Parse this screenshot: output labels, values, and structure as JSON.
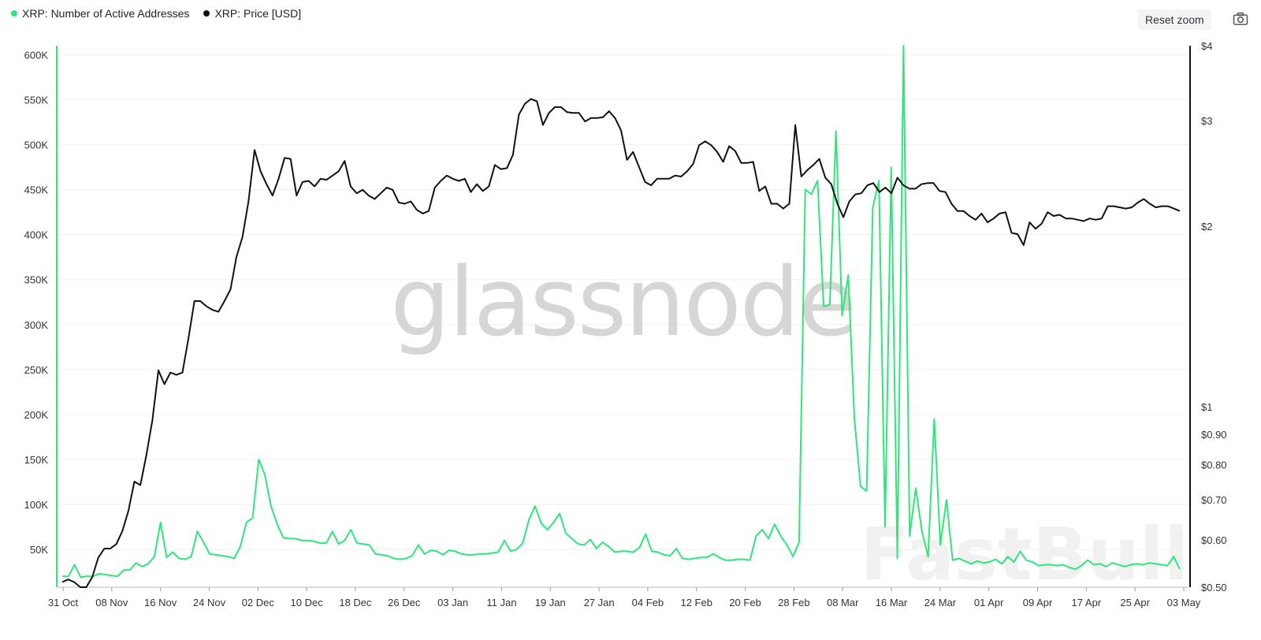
{
  "legend": [
    {
      "label": "XRP: Number of Active Addresses",
      "color": "#2ee67a"
    },
    {
      "label": "XRP: Price [USD]",
      "color": "#111111"
    }
  ],
  "toolbar": {
    "reset_zoom": "Reset zoom",
    "camera_icon": "camera-icon"
  },
  "watermarks": {
    "main": "glassnode",
    "secondary": "FastBull"
  },
  "chart_data": {
    "type": "line",
    "x_tick_labels": [
      "31 Oct",
      "08 Nov",
      "16 Nov",
      "24 Nov",
      "02 Dec",
      "10 Dec",
      "18 Dec",
      "26 Dec",
      "03 Jan",
      "11 Jan",
      "19 Jan",
      "27 Jan",
      "04 Feb",
      "12 Feb",
      "20 Feb",
      "28 Feb",
      "08 Mar",
      "16 Mar",
      "24 Mar",
      "01 Apr",
      "09 Apr",
      "17 Apr",
      "25 Apr",
      "03 May"
    ],
    "y_left": {
      "ticks": [
        50000,
        100000,
        150000,
        200000,
        250000,
        300000,
        350000,
        400000,
        450000,
        500000,
        550000,
        600000
      ],
      "tick_labels": [
        "50K",
        "100K",
        "150K",
        "200K",
        "250K",
        "300K",
        "350K",
        "400K",
        "450K",
        "500K",
        "550K",
        "600K"
      ],
      "range": [
        8000,
        610000
      ]
    },
    "y_right": {
      "scale": "log",
      "ticks": [
        0.5,
        0.6,
        0.7,
        0.8,
        0.9,
        1,
        2,
        3,
        4
      ],
      "tick_labels": [
        "$0.50",
        "$0.60",
        "$0.70",
        "$0.80",
        "$0.90",
        "$1",
        "$2",
        "$3",
        "$4"
      ],
      "range": [
        0.5,
        4
      ]
    },
    "series": [
      {
        "name": "XRP: Number of Active Addresses",
        "color": "#2ee67a",
        "axis": "left",
        "values": [
          20000,
          20000,
          33000,
          19000,
          20000,
          20000,
          23000,
          22000,
          21000,
          20000,
          27000,
          27000,
          35000,
          31000,
          34000,
          42000,
          80000,
          41000,
          47000,
          40000,
          39000,
          42000,
          70000,
          58000,
          45000,
          44000,
          43000,
          42000,
          40000,
          53000,
          80000,
          85000,
          150000,
          133000,
          98000,
          78000,
          63000,
          62000,
          62000,
          60000,
          60000,
          59000,
          57000,
          57000,
          70000,
          56000,
          60000,
          72000,
          57000,
          56000,
          55000,
          45000,
          44000,
          43000,
          40000,
          39000,
          40000,
          43000,
          55000,
          45000,
          49000,
          48000,
          44000,
          49000,
          48000,
          45000,
          44000,
          44000,
          45000,
          45000,
          46000,
          47000,
          60000,
          48000,
          50000,
          57000,
          83000,
          98000,
          79000,
          72000,
          80000,
          90000,
          68000,
          62000,
          56000,
          55000,
          61000,
          51000,
          58000,
          53000,
          47000,
          48000,
          48000,
          47000,
          52000,
          67000,
          48000,
          47000,
          44000,
          43000,
          51000,
          40000,
          39000,
          40000,
          41000,
          41000,
          45000,
          41000,
          38000,
          38000,
          39000,
          39000,
          38000,
          65000,
          72000,
          62000,
          78000,
          65000,
          55000,
          42000,
          58000,
          450000,
          445000,
          460000,
          320000,
          322000,
          515000,
          310000,
          355000,
          195000,
          120000,
          115000,
          430000,
          460000,
          75000,
          475000,
          40000,
          610000,
          65000,
          118000,
          70000,
          42000,
          195000,
          55000,
          105000,
          38000,
          40000,
          37000,
          34000,
          37000,
          35000,
          36000,
          39000,
          34000,
          42000,
          36000,
          48000,
          38000,
          36000,
          32000,
          33000,
          33000,
          32000,
          33000,
          30000,
          28000,
          32000,
          38000,
          33000,
          34000,
          31000,
          35000,
          33000,
          31000,
          33000,
          34000,
          33000,
          35000,
          34000,
          33000,
          32000,
          42000,
          28000
        ]
      },
      {
        "name": "XRP: Price [USD]",
        "color": "#111111",
        "axis": "right",
        "values": [
          0.51,
          0.515,
          0.51,
          0.5,
          0.5,
          0.52,
          0.56,
          0.58,
          0.58,
          0.59,
          0.62,
          0.67,
          0.75,
          0.74,
          0.83,
          0.95,
          1.15,
          1.09,
          1.14,
          1.13,
          1.14,
          1.3,
          1.5,
          1.5,
          1.47,
          1.45,
          1.44,
          1.5,
          1.57,
          1.78,
          1.92,
          2.2,
          2.68,
          2.47,
          2.35,
          2.25,
          2.4,
          2.6,
          2.59,
          2.25,
          2.37,
          2.38,
          2.33,
          2.4,
          2.39,
          2.43,
          2.47,
          2.57,
          2.33,
          2.27,
          2.3,
          2.25,
          2.22,
          2.27,
          2.32,
          2.3,
          2.19,
          2.18,
          2.2,
          2.13,
          2.1,
          2.12,
          2.32,
          2.38,
          2.43,
          2.4,
          2.38,
          2.4,
          2.28,
          2.35,
          2.29,
          2.33,
          2.53,
          2.49,
          2.5,
          2.63,
          3.07,
          3.2,
          3.26,
          3.23,
          2.95,
          3.09,
          3.16,
          3.16,
          3.1,
          3.09,
          3.09,
          2.99,
          3.03,
          3.03,
          3.04,
          3.11,
          3.03,
          2.89,
          2.58,
          2.66,
          2.51,
          2.37,
          2.34,
          2.4,
          2.4,
          2.4,
          2.43,
          2.42,
          2.47,
          2.54,
          2.73,
          2.77,
          2.73,
          2.66,
          2.56,
          2.72,
          2.67,
          2.55,
          2.55,
          2.56,
          2.29,
          2.33,
          2.18,
          2.18,
          2.14,
          2.18,
          2.95,
          2.42,
          2.48,
          2.53,
          2.59,
          2.41,
          2.35,
          2.18,
          2.07,
          2.2,
          2.26,
          2.27,
          2.34,
          2.36,
          2.28,
          2.32,
          2.27,
          2.41,
          2.34,
          2.31,
          2.31,
          2.35,
          2.36,
          2.36,
          2.29,
          2.28,
          2.18,
          2.12,
          2.12,
          2.08,
          2.05,
          2.1,
          2.03,
          2.06,
          2.1,
          2.11,
          1.95,
          1.94,
          1.86,
          2.03,
          1.98,
          2.02,
          2.11,
          2.08,
          2.09,
          2.06,
          2.06,
          2.05,
          2.04,
          2.06,
          2.05,
          2.06,
          2.16,
          2.16,
          2.15,
          2.14,
          2.15,
          2.19,
          2.22,
          2.18,
          2.15,
          2.16,
          2.16,
          2.14,
          2.12
        ]
      }
    ]
  }
}
